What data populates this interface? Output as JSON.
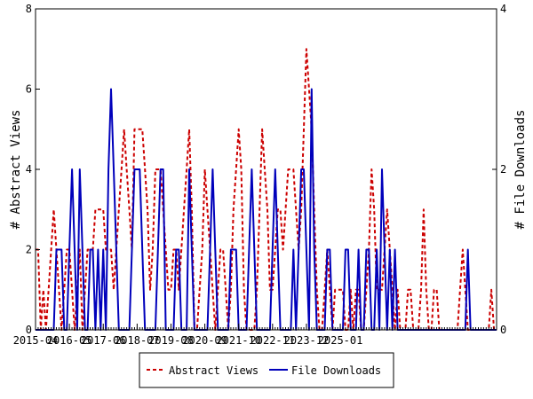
{
  "chart_data": {
    "type": "line",
    "xlabel": "",
    "ylabel_left": "# Abstract Views",
    "ylabel_right": "# File Downloads",
    "ylim_left": [
      0,
      8
    ],
    "ylim_right": [
      0,
      4
    ],
    "yticks_left": [
      0,
      2,
      4,
      6,
      8
    ],
    "yticks_right": [
      0,
      2,
      4
    ],
    "x_range_months": [
      "2015-04",
      "2025-11"
    ],
    "xtick_labels": [
      "2015-04",
      "2016-05",
      "2017-06",
      "2018-07",
      "2019-08",
      "2020-09",
      "2021-10",
      "2022-11",
      "2023-12",
      "2025-01"
    ],
    "grid": false,
    "legend_position": "bottom-center",
    "series": [
      {
        "name": "Abstract Views",
        "axis": "left",
        "color": "#cc0000",
        "dash": "dashed",
        "values": [
          2,
          2,
          0,
          1,
          0,
          1,
          2,
          3,
          2,
          1,
          0,
          1,
          2,
          2,
          1,
          0,
          1,
          2,
          0,
          1,
          2,
          2,
          2,
          3,
          3,
          3,
          3,
          2,
          2,
          2,
          1,
          2,
          3,
          4,
          5,
          4,
          3,
          2,
          5,
          5,
          5,
          5,
          4,
          3,
          1,
          2,
          4,
          4,
          4,
          3,
          2,
          1,
          1,
          2,
          2,
          1,
          2,
          3,
          4,
          5,
          3,
          0,
          0,
          1,
          2,
          4,
          3,
          2,
          1,
          0,
          1,
          2,
          2,
          1,
          0,
          1,
          3,
          4,
          5,
          4,
          1,
          0,
          0,
          0,
          0,
          1,
          3,
          5,
          4,
          3,
          1,
          1,
          2,
          3,
          3,
          2,
          3,
          4,
          4,
          4,
          3,
          2,
          3,
          5,
          7,
          6,
          5,
          3,
          1,
          0,
          0,
          1,
          2,
          1,
          0,
          1,
          1,
          1,
          1,
          0,
          0,
          1,
          0,
          1,
          1,
          0,
          0,
          1,
          2,
          4,
          3,
          1,
          1,
          1,
          2,
          3,
          2,
          1,
          0,
          1,
          0,
          0,
          0,
          1,
          1,
          0,
          0,
          0,
          1,
          3,
          1,
          0,
          0,
          1,
          1,
          0,
          0,
          0,
          0,
          0,
          0,
          0,
          0,
          1,
          2,
          1,
          0,
          0,
          0,
          0,
          0,
          0,
          0,
          0,
          0,
          1,
          0,
          0
        ]
      },
      {
        "name": "File Downloads",
        "axis": "right",
        "color": "#0000bb",
        "dash": "solid",
        "values": [
          0,
          0,
          0,
          0,
          0,
          0,
          0,
          0,
          1,
          1,
          1,
          0,
          0,
          1,
          2,
          1,
          0,
          2,
          1,
          0,
          0,
          1,
          1,
          0,
          1,
          0,
          1,
          0,
          2,
          3,
          2,
          1,
          0,
          0,
          0,
          0,
          0,
          1,
          2,
          2,
          2,
          1,
          0,
          0,
          0,
          0,
          0,
          1,
          2,
          2,
          0,
          0,
          0,
          0,
          1,
          1,
          0,
          0,
          0,
          2,
          1,
          0,
          0,
          0,
          0,
          0,
          0,
          1,
          2,
          1,
          0,
          0,
          0,
          0,
          0,
          1,
          1,
          1,
          0,
          0,
          0,
          0,
          1,
          2,
          1,
          0,
          0,
          0,
          0,
          0,
          0,
          1,
          2,
          1,
          0,
          0,
          0,
          0,
          0,
          1,
          0,
          1,
          2,
          2,
          1,
          0,
          3,
          1,
          0,
          0,
          0,
          0,
          1,
          1,
          0,
          0,
          0,
          0,
          0,
          1,
          1,
          0,
          0,
          0,
          1,
          0,
          0,
          1,
          1,
          0,
          0,
          1,
          0,
          2,
          1,
          0,
          1,
          0,
          1,
          0,
          0,
          0,
          0,
          0,
          0,
          0,
          0,
          0,
          0,
          0,
          0,
          0,
          0,
          0,
          0,
          0,
          0,
          0,
          0,
          0,
          0,
          0,
          0,
          0,
          0,
          0,
          1,
          0,
          0,
          0,
          0,
          0,
          0,
          0,
          0,
          0,
          0,
          0
        ]
      }
    ]
  }
}
